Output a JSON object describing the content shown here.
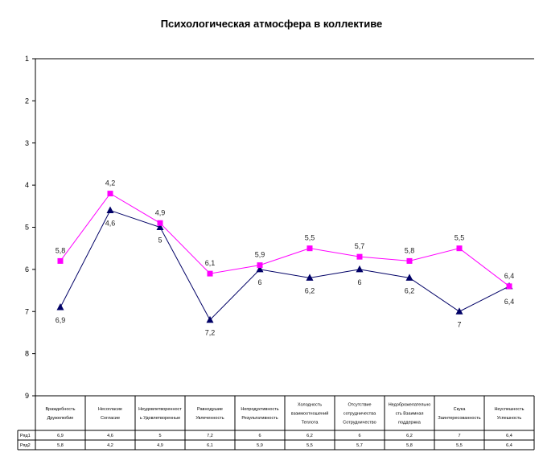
{
  "chart_data": {
    "type": "line",
    "title": "Психологическая атмосфера в коллективе",
    "ylim": [
      1,
      9
    ],
    "y_inverted": true,
    "yticks": [
      "1",
      "2",
      "3",
      "4",
      "5",
      "6",
      "7",
      "8",
      "9"
    ],
    "categories": [
      [
        "Враждебность",
        "Дружелюбие"
      ],
      [
        "Несогласие",
        "Согласие"
      ],
      [
        "Неудовлетворенност",
        "ь Удовлетворенные"
      ],
      [
        "Равнодушие",
        "Увлеченность"
      ],
      [
        "Непродуктивность",
        "Результативность"
      ],
      [
        "Холодность",
        "взаимоотношений",
        "Теплота"
      ],
      [
        "Отсутствие",
        "сотрудничества",
        "Сотрудничество"
      ],
      [
        "Недоброжелательно",
        "сть Взаимная",
        "поддержка"
      ],
      [
        "Скука",
        "Заинтересованность"
      ],
      [
        "Неуспешность",
        "Успешность"
      ]
    ],
    "series": [
      {
        "name": "Ряд1",
        "color": "#000066",
        "marker": "triangle",
        "values": [
          6.9,
          4.6,
          5,
          7.2,
          6,
          6.2,
          6,
          6.2,
          7,
          6.4
        ],
        "labels": [
          "6,9",
          "4,6",
          "5",
          "7,2",
          "6",
          "6,2",
          "6",
          "6,2",
          "7",
          "6,4"
        ],
        "table": [
          "6,9",
          "4,6",
          "5",
          "7,2",
          "6",
          "6,2",
          "6",
          "6,2",
          "7",
          "6,4"
        ]
      },
      {
        "name": "Ряд2",
        "color": "#ff00ff",
        "marker": "square",
        "values": [
          5.8,
          4.2,
          4.9,
          6.1,
          5.9,
          5.5,
          5.7,
          5.8,
          5.5,
          6.4
        ],
        "labels": [
          "5,8",
          "4,2",
          "4,9",
          "6,1",
          "5,9",
          "5,5",
          "5,7",
          "5,8",
          "5,5",
          "6,4"
        ],
        "table": [
          "5,8",
          "4,2",
          "4,9",
          "6,1",
          "5,9",
          "5,5",
          "5,7",
          "5,8",
          "5,5",
          "6,4"
        ]
      }
    ],
    "grid": false,
    "legend": "data-table"
  }
}
